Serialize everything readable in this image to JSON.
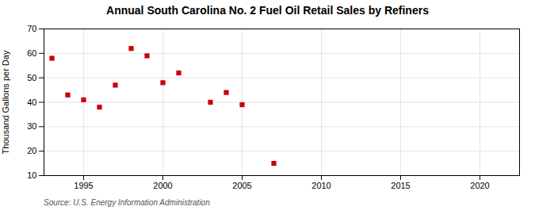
{
  "chart_data": {
    "type": "scatter",
    "title": "Annual South Carolina No. 2 Fuel Oil Retail Sales by Refiners",
    "ylabel": "Thousand Gallons per Day",
    "source": "Source: U.S. Energy Information Administration",
    "x": [
      1993,
      1994,
      1995,
      1996,
      1997,
      1998,
      1999,
      2000,
      2001,
      2003,
      2004,
      2005,
      2007
    ],
    "values": [
      58,
      43,
      41,
      38,
      47,
      62,
      59,
      48,
      52,
      40,
      44,
      39,
      15
    ],
    "color": "#cc0000",
    "marker": "square",
    "xlim": [
      1992.5,
      2022.5
    ],
    "ylim": [
      10,
      70
    ],
    "xticks": [
      1995,
      2000,
      2005,
      2010,
      2015,
      2020
    ],
    "yticks": [
      10,
      20,
      30,
      40,
      50,
      60,
      70
    ],
    "grid": true
  }
}
